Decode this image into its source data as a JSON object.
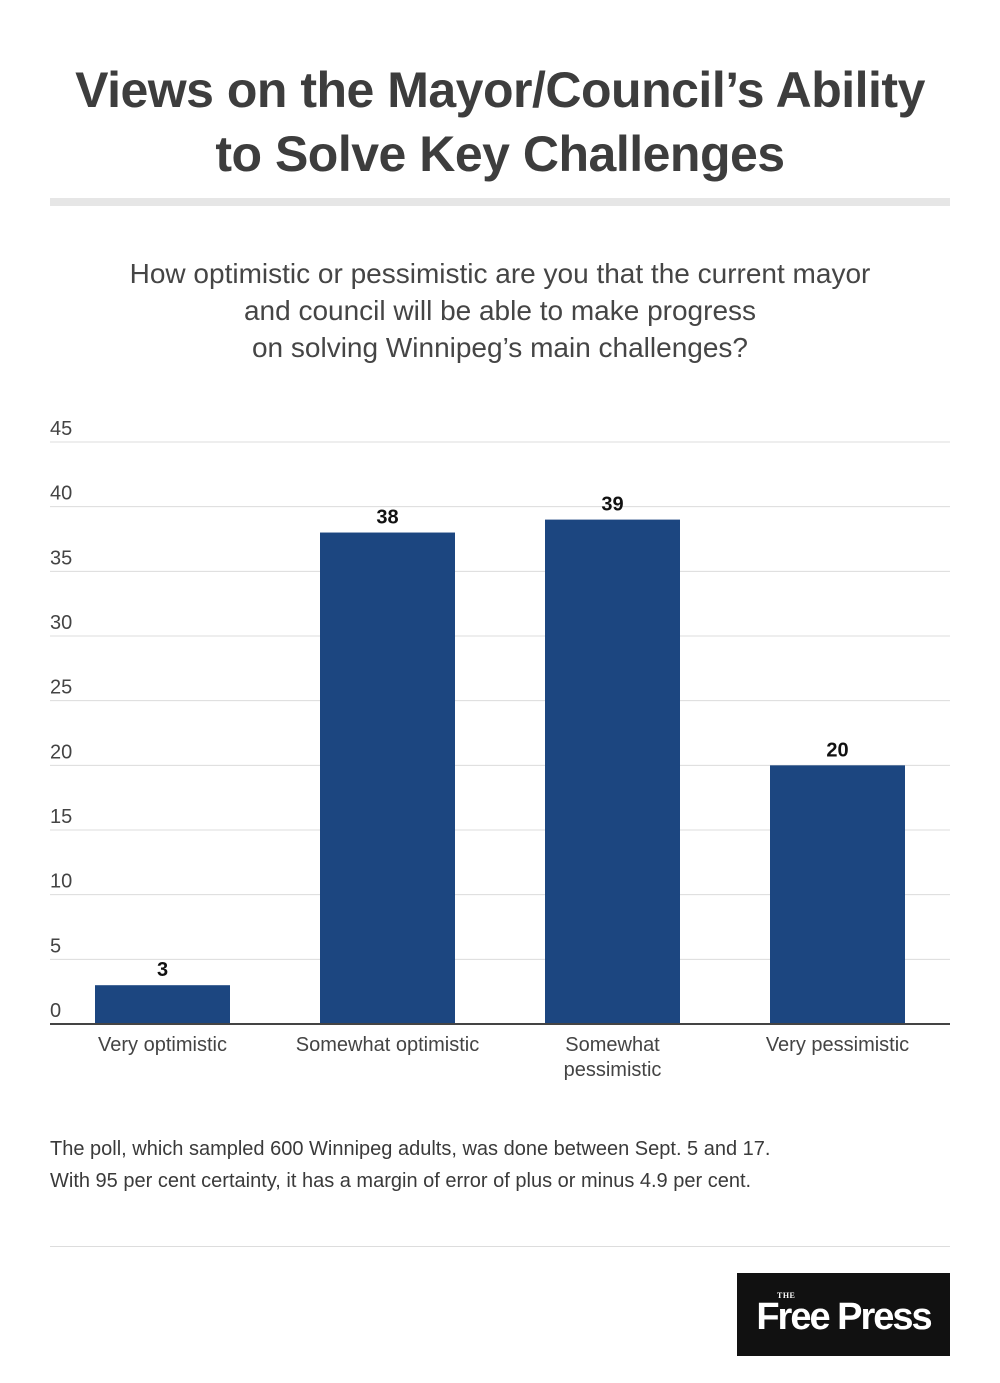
{
  "header": {
    "title_lines": [
      "Views on the Mayor/Council’s Ability",
      "to Solve Key Challenges"
    ],
    "subtitle_lines": [
      "How optimistic or pessimistic are you that the current mayor",
      "and council will be able to make progress",
      "on solving Winnipeg’s main challenges?"
    ]
  },
  "chart_data": {
    "type": "bar",
    "title": "",
    "xlabel": "",
    "ylabel": "",
    "categories": [
      [
        "Very optimistic"
      ],
      [
        "Somewhat optimistic"
      ],
      [
        "Somewhat",
        "pessimistic"
      ],
      [
        "Very pessimistic"
      ]
    ],
    "values": [
      3,
      38,
      39,
      20
    ],
    "data_labels": [
      "3",
      "38",
      "39",
      "20"
    ],
    "y_ticks": [
      0,
      5,
      10,
      15,
      20,
      25,
      30,
      35,
      40,
      45
    ],
    "ylim": [
      0,
      45
    ],
    "grid": true,
    "legend": "none",
    "bar_color": "#1c4680"
  },
  "note": {
    "lines": [
      "The poll, which sampled 600 Winnipeg adults, was done between Sept. 5 and 17.",
      "With 95 per cent certainty, it has a margin of error of plus or minus 4.9 per cent."
    ]
  },
  "logo": {
    "kicker": "THE",
    "name": "Free Press"
  },
  "colors": {
    "bar": "#1c4680",
    "gridline": "#dcdcdc",
    "axis": "#444444",
    "title": "#3d3d3d"
  }
}
